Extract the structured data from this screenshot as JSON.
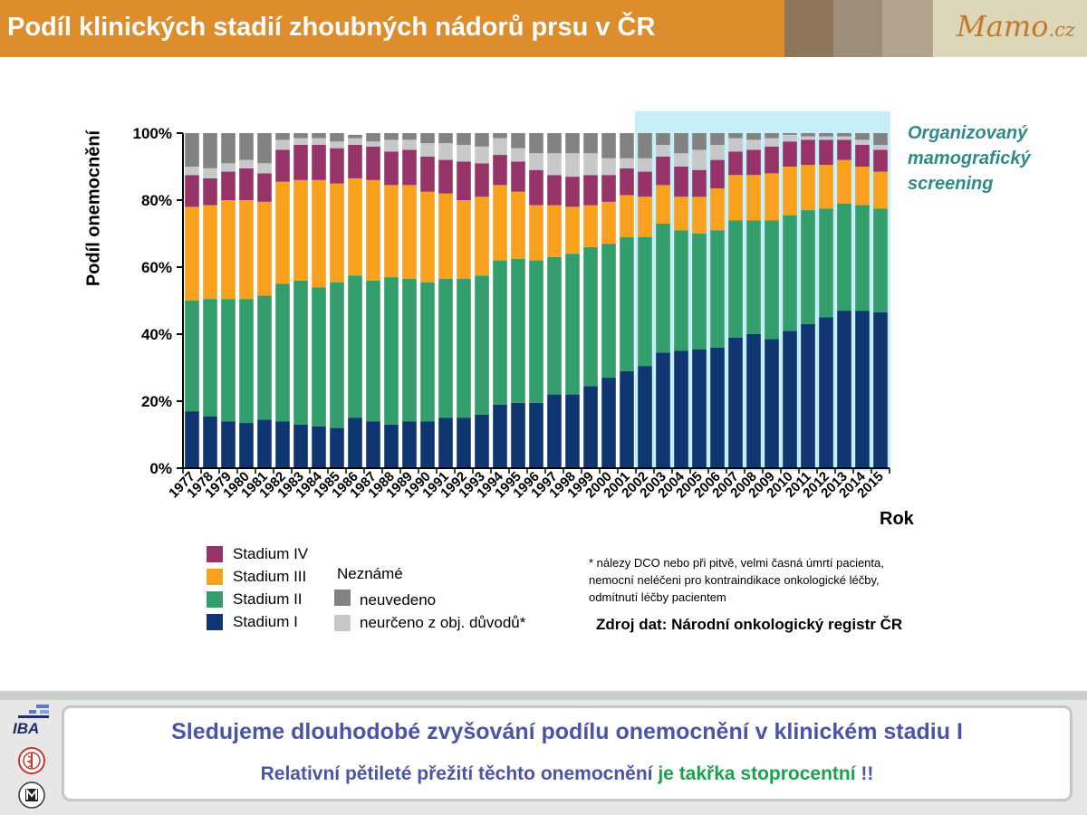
{
  "header": {
    "title": "Podíl klinických stadií zhoubných nádorů prsu v ČR",
    "logo_text": "Mamo",
    "logo_suffix": ".cz",
    "swatch_colors": [
      "#8e7557",
      "#9f8e77",
      "#b3a48e"
    ]
  },
  "annotation": {
    "screening_label": "Organizovaný mamografický screening"
  },
  "legend": {
    "stage_items": [
      "Stadium IV",
      "Stadium III",
      "Stadium II",
      "Stadium I"
    ],
    "unknown_title": "Neznámé",
    "unknown_items": [
      "neuvedeno",
      "neurčeno z obj. důvodů*"
    ]
  },
  "footnote": "* nálezy DCO nebo při pitvě, velmi časná úmrtí pacienta, nemocní neléčeni pro kontraindikace onkologické léčby, odmítnutí léčby pacientem",
  "source": "Zdroj dat: Národní onkologický registr ČR",
  "footer": {
    "message_1": "Sledujeme dlouhodobé zvyšování podílu onemocnění v klinickém stadiu I",
    "message_2_a": "Relativní pětileté přežití těchto onemocnění ",
    "message_2_b": "je takřka stoprocentní",
    "message_2_c": " !!",
    "iba_logo": "IBA"
  },
  "chart_data": {
    "type": "bar",
    "stacked": true,
    "xlabel": "Rok",
    "ylabel": "Podíl onemocnění",
    "ylim": [
      0,
      100
    ],
    "yticks": [
      "0%",
      "20%",
      "40%",
      "60%",
      "80%",
      "100%"
    ],
    "categories": [
      "1977",
      "1978",
      "1979",
      "1980",
      "1981",
      "1982",
      "1983",
      "1984",
      "1985",
      "1986",
      "1987",
      "1988",
      "1989",
      "1990",
      "1991",
      "1992",
      "1993",
      "1994",
      "1995",
      "1996",
      "1997",
      "1998",
      "1999",
      "2000",
      "2001",
      "2002",
      "2003",
      "2004",
      "2005",
      "2006",
      "2007",
      "2008",
      "2009",
      "2010",
      "2011",
      "2012",
      "2013",
      "2014",
      "2015"
    ],
    "highlight_range": [
      "2003",
      "2015"
    ],
    "series": [
      {
        "name": "Stadium I",
        "color": "#0f3670",
        "values": [
          17,
          15.5,
          14,
          13.5,
          14.5,
          14,
          13,
          12.5,
          12,
          15,
          14,
          13,
          14,
          14,
          15,
          15,
          16,
          19,
          19.5,
          19.5,
          22,
          22,
          24.5,
          27,
          29,
          30.5,
          34.5,
          35,
          35.5,
          36,
          39,
          40,
          38.5,
          41,
          43,
          45,
          47,
          47,
          46.5
        ]
      },
      {
        "name": "Stadium II",
        "color": "#339e6c",
        "values": [
          33,
          35,
          36.5,
          37,
          37,
          41,
          43,
          41.5,
          43.5,
          42.5,
          42,
          44,
          42.5,
          41.5,
          41.5,
          41.5,
          41.5,
          43,
          43,
          42.5,
          41,
          42,
          41.5,
          40,
          40,
          38.5,
          38.5,
          36,
          34.5,
          35,
          35,
          34,
          35.5,
          34.5,
          34,
          32.5,
          32,
          31.5,
          31
        ]
      },
      {
        "name": "Stadium III",
        "color": "#f8a11f",
        "values": [
          28,
          28,
          29.5,
          29.5,
          28,
          30.5,
          30,
          32,
          29.5,
          29,
          30,
          27.5,
          28,
          27,
          25.5,
          23.5,
          23.5,
          22.5,
          20,
          16.5,
          15.5,
          14,
          12.5,
          12.5,
          12.5,
          12,
          11.5,
          10,
          11,
          12.5,
          13.5,
          13.5,
          14,
          14.5,
          13.5,
          13,
          13,
          11.5,
          11
        ]
      },
      {
        "name": "Stadium IV",
        "color": "#963469",
        "values": [
          9.5,
          8,
          8.5,
          9.5,
          8.5,
          9.5,
          10.5,
          10.5,
          10.5,
          10,
          10,
          10,
          10.5,
          10.5,
          10,
          11.5,
          10,
          9,
          9,
          10.5,
          9,
          9,
          9,
          8,
          8,
          7.5,
          8.5,
          9,
          8,
          8.5,
          7,
          7.5,
          8,
          7.5,
          7.5,
          7.5,
          6,
          6.5,
          6.5
        ]
      },
      {
        "name": "neurčeno z obj. důvodů*",
        "color": "#c8c8c8",
        "values": [
          2.5,
          3,
          2.5,
          2.5,
          3,
          3,
          2,
          2,
          2,
          2,
          1.5,
          3.5,
          3,
          4,
          5,
          5,
          5,
          5,
          4,
          5,
          6.5,
          7,
          6.5,
          5,
          3,
          4,
          3.5,
          4,
          6,
          4.5,
          4,
          3,
          2.5,
          2,
          1,
          1,
          1,
          1.5,
          1.5
        ]
      },
      {
        "name": "neuvedeno",
        "color": "#828282",
        "values": [
          10,
          10.5,
          9,
          8,
          9,
          2,
          1.5,
          1.5,
          2.5,
          1,
          2.5,
          2,
          2,
          3,
          3,
          3.5,
          4,
          1.5,
          4.5,
          6,
          6,
          6,
          6,
          7.5,
          7.5,
          7.5,
          3.5,
          6,
          5,
          3.5,
          1.5,
          2,
          1.5,
          0.5,
          1,
          1,
          1,
          2,
          3.5
        ]
      }
    ]
  }
}
